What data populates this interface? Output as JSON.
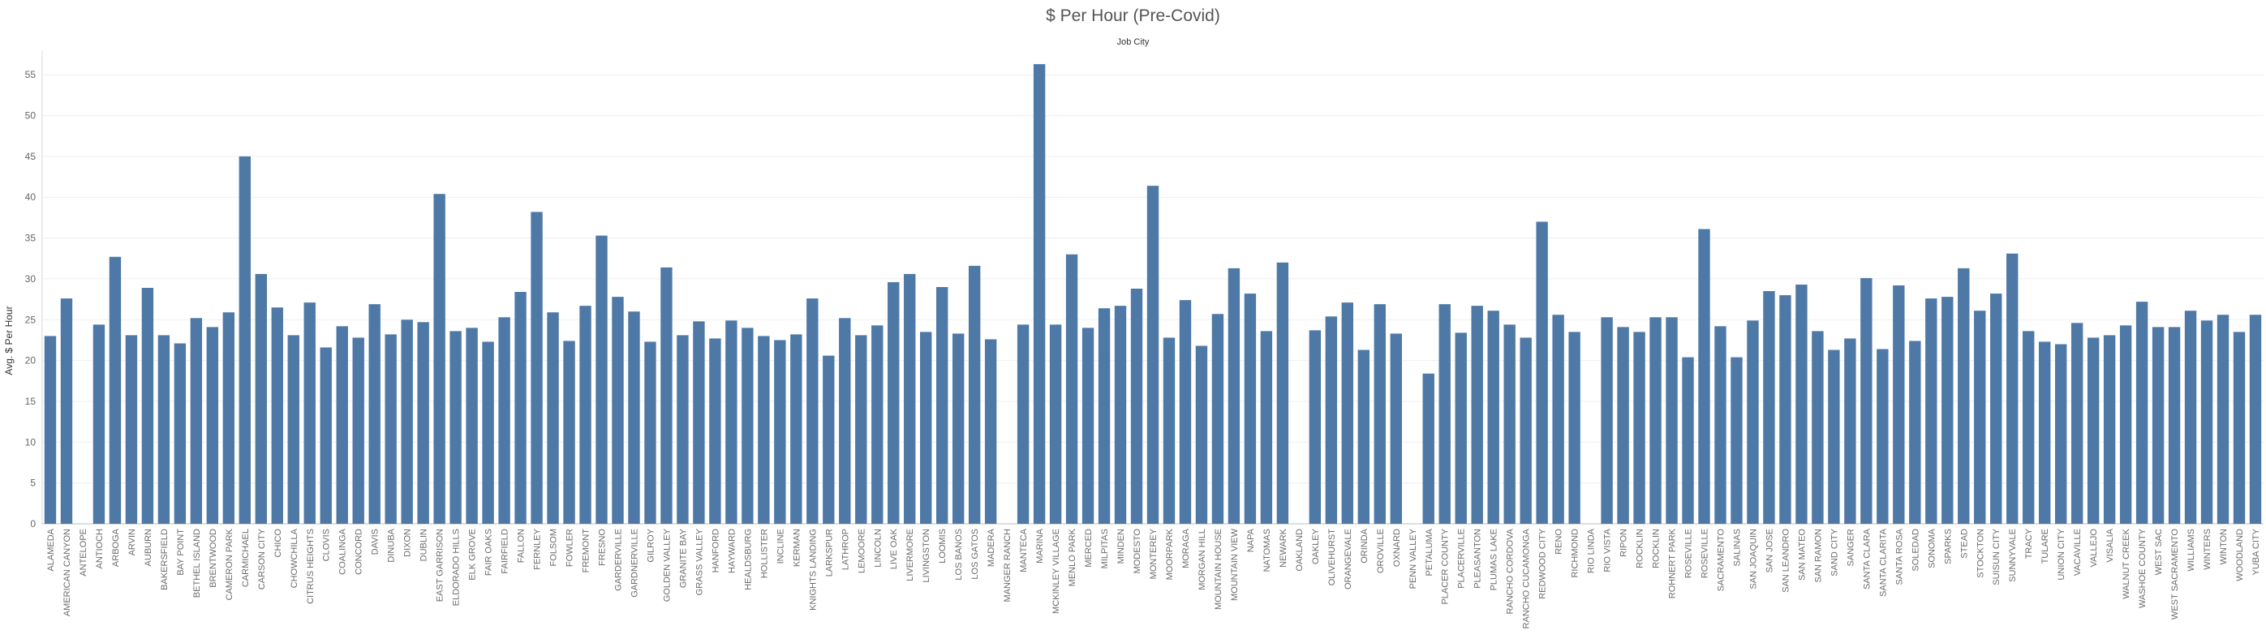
{
  "chart_data": {
    "type": "bar",
    "title": "$ Per Hour (Pre-Covid)",
    "subtitle": "Job City",
    "xlabel": "",
    "ylabel": "Avg. $ Per Hour",
    "ylim": [
      0,
      58
    ],
    "yticks": [
      0,
      5,
      10,
      15,
      20,
      25,
      30,
      35,
      40,
      45,
      50,
      55
    ],
    "grid": true,
    "bar_color": "#4e79a7",
    "categories": [
      "ALAMEDA",
      "AMERICAN CANYON",
      "ANTELOPE",
      "ANTIOCH",
      "ARBOGA",
      "ARVIN",
      "AUBURN",
      "BAKERSFIELD",
      "BAY POINT",
      "BETHEL ISLAND",
      "BRENTWOOD",
      "CAMERON PARK",
      "CARMICHAEL",
      "CARSON CITY",
      "CHICO",
      "CHOWCHILLA",
      "CITRUS HEIGHTS",
      "CLOVIS",
      "COALINGA",
      "CONCORD",
      "DAVIS",
      "DINUBA",
      "DIXON",
      "DUBLIN",
      "EAST GARRISON",
      "ELDORADO HILLS",
      "ELK GROVE",
      "FAIR OAKS",
      "FAIRFIELD",
      "FALLON",
      "FERNLEY",
      "FOLSOM",
      "FOWLER",
      "FREMONT",
      "FRESNO",
      "GARDERVILLE",
      "GARDNERVILLE",
      "GILROY",
      "GOLDEN VALLEY",
      "GRANITE BAY",
      "GRASS VALLEY",
      "HANFORD",
      "HAYWARD",
      "HEALDSBURG",
      "HOLLISTER",
      "INCLINE",
      "KERMAN",
      "KNIGHTS LANDING",
      "LARKSPUR",
      "LATHROP",
      "LEMOORE",
      "LINCOLN",
      "LIVE OAK",
      "LIVERMORE",
      "LIVINGSTON",
      "LOOMIS",
      "LOS BANOS",
      "LOS GATOS",
      "MADERA",
      "MANGER RANCH",
      "MANTECA",
      "MARINA",
      "MCKINLEY VILLAGE",
      "MENLO PARK",
      "MERCED",
      "MILPITAS",
      "MINDEN",
      "MODESTO",
      "MONTEREY",
      "MOORPARK",
      "MORAGA",
      "MORGAN HILL",
      "MOUNTAIN HOUSE",
      "MOUNTAIN VIEW",
      "NAPA",
      "NATOMAS",
      "NEWARK",
      "OAKLAND",
      "OAKLEY",
      "OLIVEHURST",
      "ORANGEVALE",
      "ORINDA",
      "OROVILLE",
      "OXNARD",
      "PENN VALLEY",
      "PETALUMA",
      "PLACER COUNTY",
      "PLACERVILLE",
      "PLEASANTON",
      "PLUMAS LAKE",
      "RANCHO CORDOVA",
      "RANCHO CUCAMONGA",
      "REDWOOD CITY",
      "RENO",
      "RICHMOND",
      "RIO LINDA",
      "RIO VISTA",
      "RIPON",
      "ROCKLIN",
      "ROCKLIN",
      "ROHNERT PARK",
      "ROSEVILLE",
      "ROSEVILLE",
      "SACRAMENTO",
      "SALINAS",
      "SAN JOAQUIN",
      "SAN JOSE",
      "SAN LEANDRO",
      "SAN MATEO",
      "SAN RAMON",
      "SAND CITY",
      "SANGER",
      "SANTA CLARA",
      "SANTA CLARITA",
      "SANTA ROSA",
      "SOLEDAD",
      "SONOMA",
      "SPARKS",
      "STEAD",
      "STOCKTON",
      "SUISUN CITY",
      "SUNNYVALE",
      "TRACY",
      "TULARE",
      "UNION CITY",
      "VACAVILLE",
      "VALLEJO",
      "VISALIA",
      "WALNUT CREEK",
      "WASHOE COUNTY",
      "WEST SAC",
      "WEST SACRAMENTO",
      "WILLIAMS",
      "WINTERS",
      "WINTON",
      "WOODLAND",
      "YUBA CITY"
    ],
    "values": [
      23.0,
      27.6,
      null,
      24.4,
      32.7,
      23.1,
      28.9,
      23.1,
      22.1,
      25.2,
      24.1,
      25.9,
      45.0,
      30.6,
      26.5,
      23.1,
      27.1,
      21.6,
      24.2,
      22.8,
      26.9,
      23.2,
      25.0,
      24.7,
      40.4,
      23.6,
      24.0,
      22.3,
      25.3,
      28.4,
      38.2,
      25.9,
      22.4,
      26.7,
      35.3,
      27.8,
      26.0,
      22.3,
      31.4,
      23.1,
      24.8,
      22.7,
      24.9,
      24.0,
      23.0,
      22.5,
      23.2,
      27.6,
      20.6,
      25.2,
      23.1,
      24.3,
      29.6,
      30.6,
      23.5,
      29.0,
      23.3,
      31.6,
      22.6,
      null,
      24.4,
      56.3,
      24.4,
      33.0,
      24.0,
      26.4,
      26.7,
      28.8,
      41.4,
      22.8,
      27.4,
      21.8,
      25.7,
      31.3,
      28.2,
      23.6,
      32.0,
      null,
      23.7,
      25.4,
      27.1,
      21.3,
      26.9,
      23.3,
      null,
      18.4,
      26.9,
      23.4,
      26.7,
      26.1,
      24.4,
      22.8,
      37.0,
      25.6,
      23.5,
      null,
      25.3,
      24.1,
      23.5,
      25.3,
      25.3,
      20.4,
      36.1,
      24.2,
      20.4,
      24.9,
      28.5,
      28.0,
      29.3,
      23.6,
      21.3,
      22.7,
      30.1,
      21.4,
      29.2,
      22.4,
      27.6,
      27.8,
      31.3,
      26.1,
      28.2,
      33.1,
      23.6,
      22.3,
      22.0,
      24.6,
      22.8,
      23.1,
      24.3,
      27.2,
      24.1,
      24.1,
      26.1,
      24.9,
      25.6,
      23.5,
      25.6
    ]
  }
}
